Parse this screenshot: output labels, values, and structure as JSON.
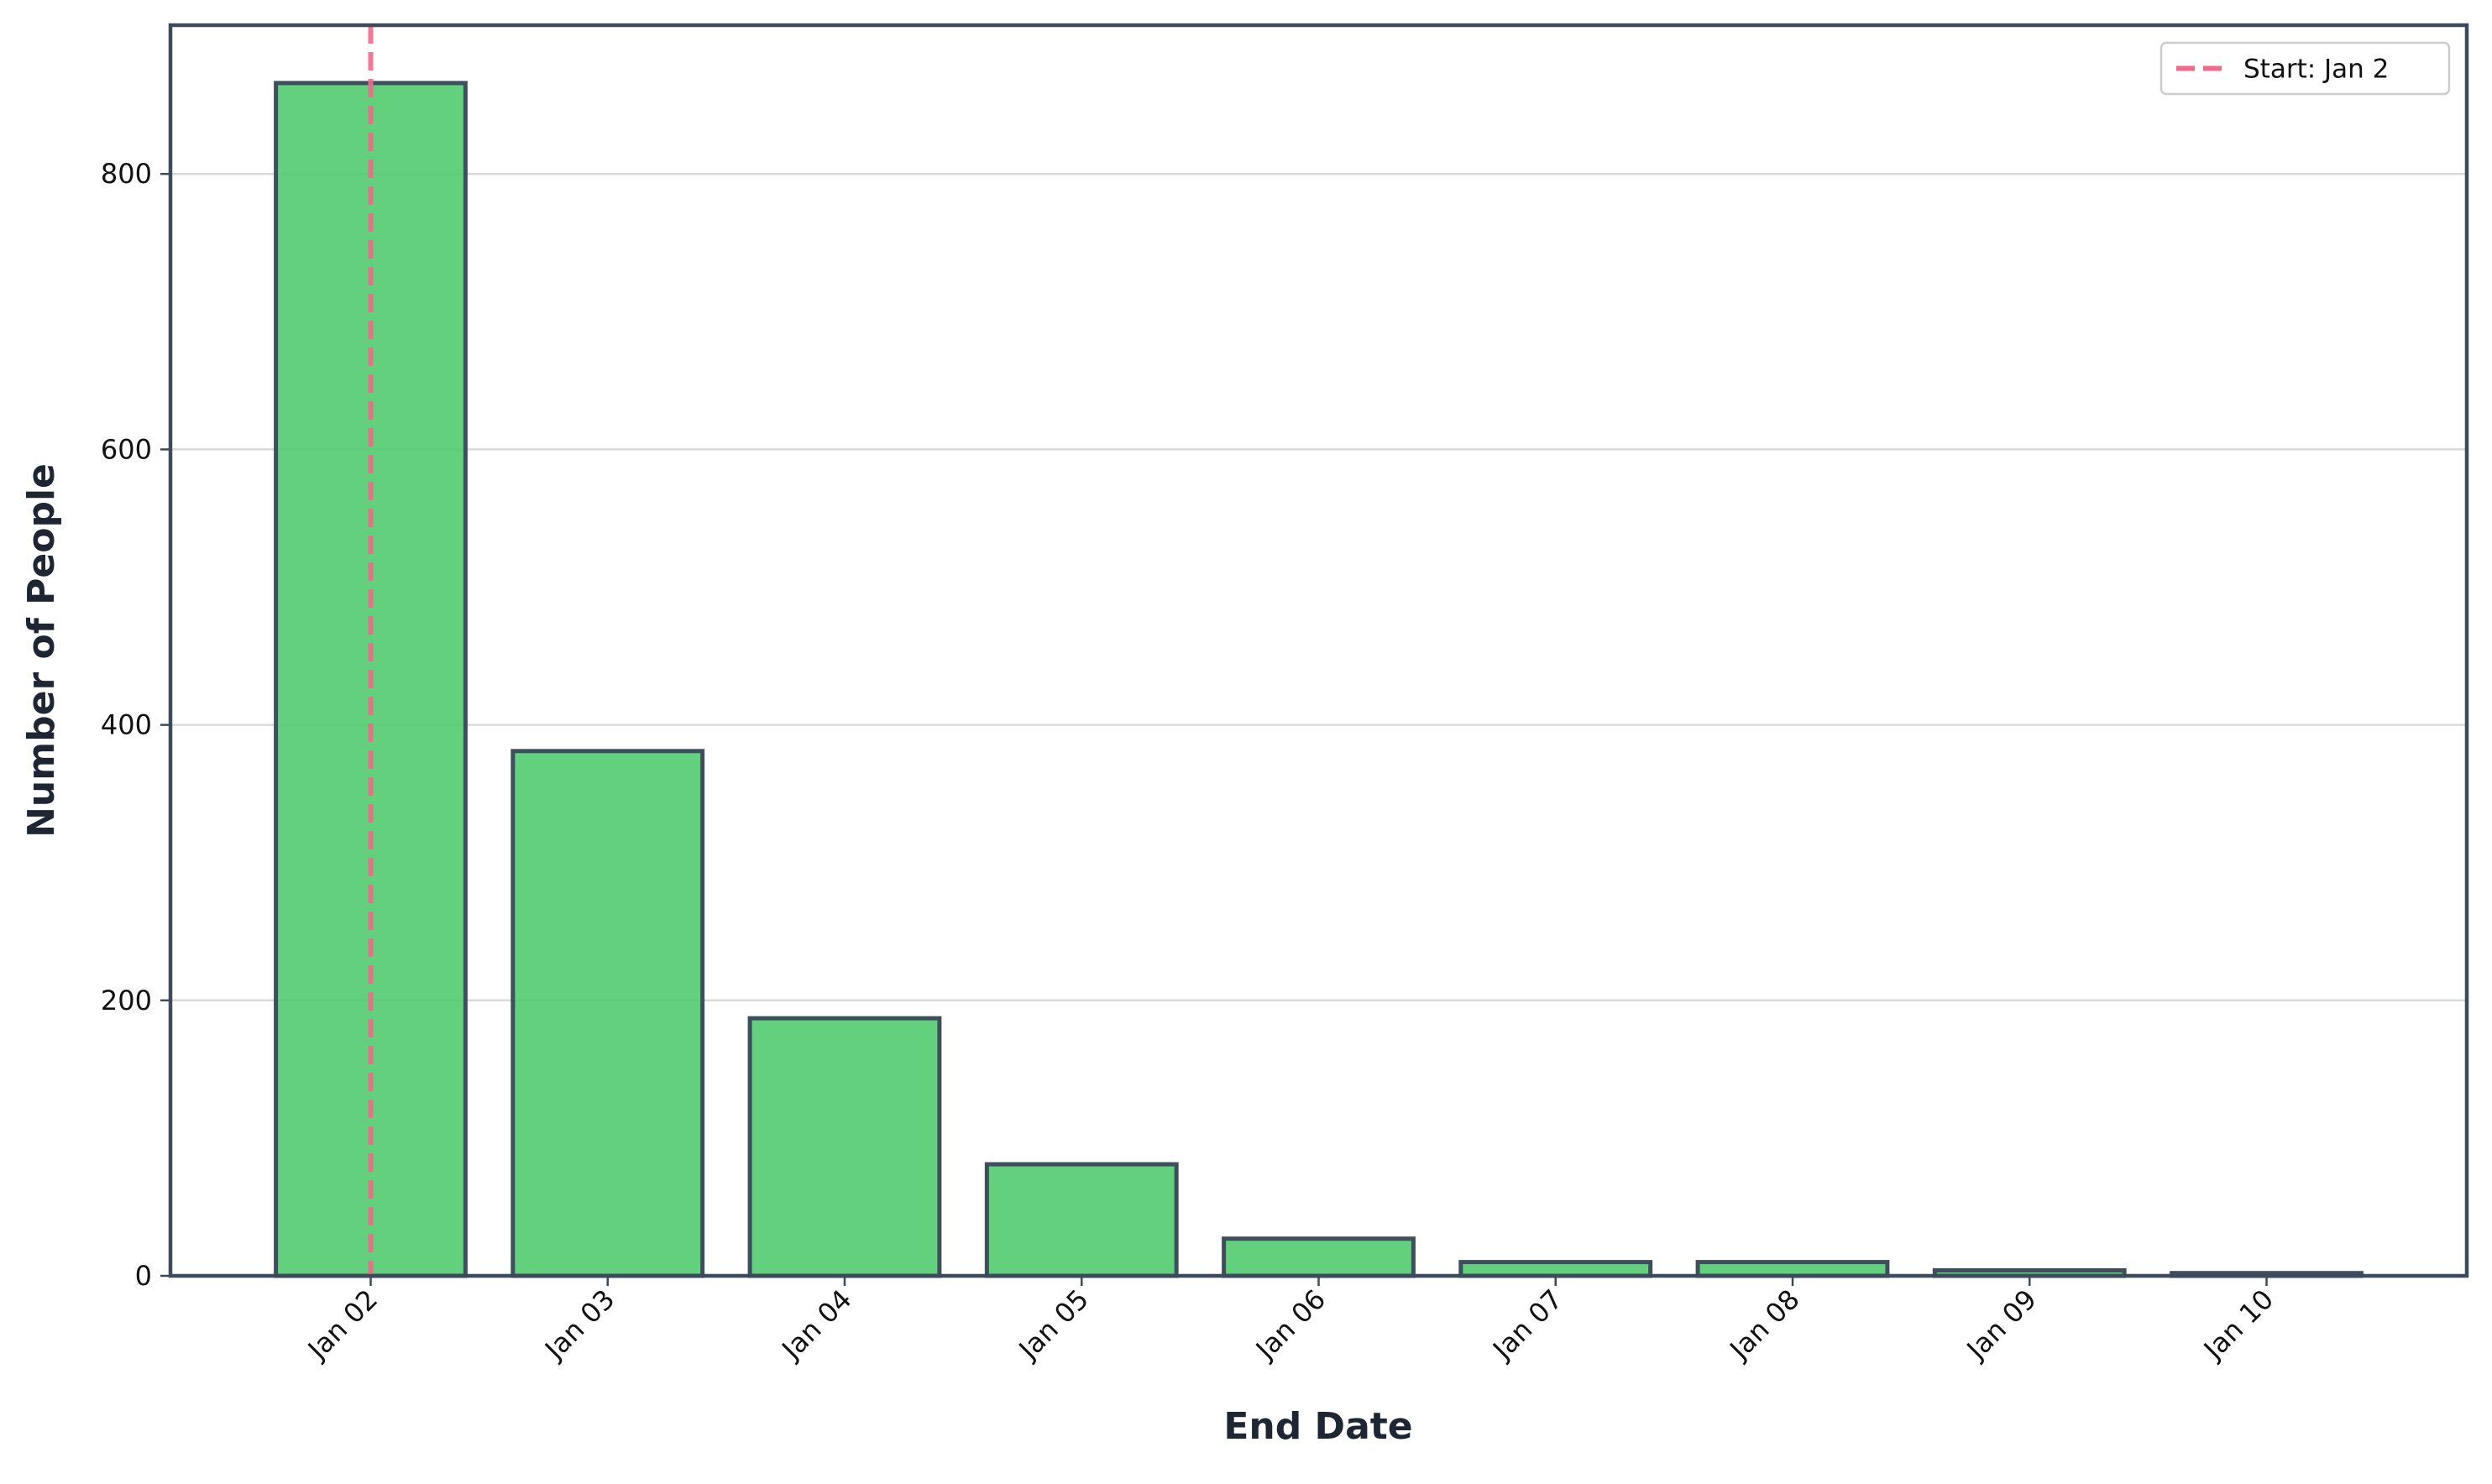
{
  "chart_data": {
    "type": "bar",
    "x_label": "End Date",
    "y_label": "Number of People",
    "categories": [
      "Jan 02",
      "Jan 03",
      "Jan 04",
      "Jan 05",
      "Jan 06",
      "Jan 07",
      "Jan 08",
      "Jan 09",
      "Jan 10"
    ],
    "values": [
      866,
      381,
      187,
      81,
      27,
      10,
      10,
      4,
      2
    ],
    "color": "#4cc96a",
    "edge_color": "#3d4f5c",
    "ylim": [
      0,
      908
    ],
    "yticks": [
      0,
      200,
      400,
      600,
      800
    ],
    "grid": true,
    "vline": {
      "label": "Start: Jan 2",
      "at": "Jan 02",
      "color": "#ee6a8c"
    },
    "legend": "upper right"
  }
}
